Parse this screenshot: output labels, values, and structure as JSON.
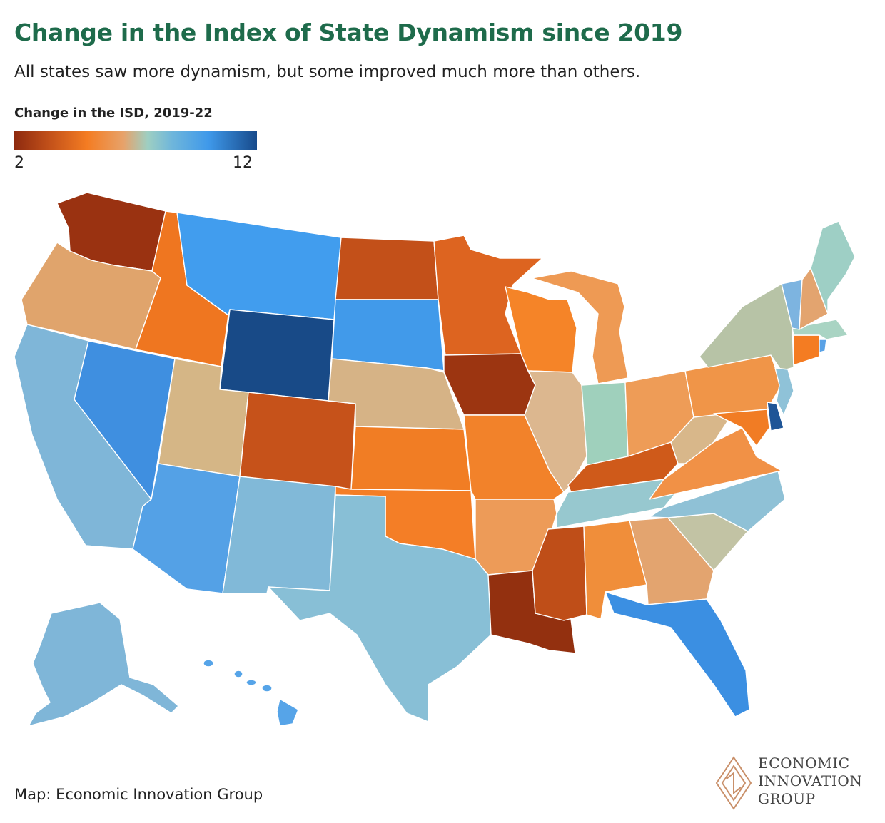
{
  "title": "Change in the Index of State Dynamism since 2019",
  "subtitle": "All states saw more dynamism, but some improved much more than others.",
  "legend": {
    "title": "Change in the ISD, 2019-22",
    "min_label": "2",
    "max_label": "12",
    "min": 2,
    "max": 12,
    "gradient_colors": [
      "#8e2a0f",
      "#c4521a",
      "#f47c22",
      "#e7a26a",
      "#9ecfc2",
      "#6fb6db",
      "#3f99ea",
      "#174a8b"
    ]
  },
  "credit": "Map: Economic Innovation Group",
  "logo": {
    "lines": [
      "ECONOMIC",
      "INNOVATION",
      "GROUP"
    ],
    "color": "#c9906a"
  },
  "states": [
    {
      "id": "WA",
      "color": "#9a3211"
    },
    {
      "id": "OR",
      "color": "#e0a46c"
    },
    {
      "id": "CA",
      "color": "#7fb6d8"
    },
    {
      "id": "NV",
      "color": "#3f8fe0"
    },
    {
      "id": "ID",
      "color": "#ef7620"
    },
    {
      "id": "MT",
      "color": "#419dee"
    },
    {
      "id": "WY",
      "color": "#184a87"
    },
    {
      "id": "UT",
      "color": "#d5b686"
    },
    {
      "id": "AZ",
      "color": "#54a1e6"
    },
    {
      "id": "CO",
      "color": "#c6521a"
    },
    {
      "id": "NM",
      "color": "#81b9d8"
    },
    {
      "id": "ND",
      "color": "#c35019"
    },
    {
      "id": "SD",
      "color": "#419aea"
    },
    {
      "id": "NE",
      "color": "#d6b386"
    },
    {
      "id": "KS",
      "color": "#f17d24"
    },
    {
      "id": "OK",
      "color": "#f47e26"
    },
    {
      "id": "TX",
      "color": "#88bfd6"
    },
    {
      "id": "MN",
      "color": "#dd6420"
    },
    {
      "id": "IA",
      "color": "#9c3511"
    },
    {
      "id": "MO",
      "color": "#f2822a"
    },
    {
      "id": "AR",
      "color": "#ed9b58"
    },
    {
      "id": "LA",
      "color": "#93300f"
    },
    {
      "id": "WI",
      "color": "#f58428"
    },
    {
      "id": "IL",
      "color": "#dcb78f"
    },
    {
      "id": "MS",
      "color": "#bf4e18"
    },
    {
      "id": "MI",
      "color": "#ee9a54"
    },
    {
      "id": "IN",
      "color": "#9fd0bc"
    },
    {
      "id": "KY",
      "color": "#cf5a1a"
    },
    {
      "id": "TN",
      "color": "#97c8cf"
    },
    {
      "id": "AL",
      "color": "#f08e3a"
    },
    {
      "id": "OH",
      "color": "#ee9c57"
    },
    {
      "id": "GA",
      "color": "#e3a46f"
    },
    {
      "id": "FL",
      "color": "#3b8fe2"
    },
    {
      "id": "WV",
      "color": "#d8b78a"
    },
    {
      "id": "VA",
      "color": "#f19146"
    },
    {
      "id": "NC",
      "color": "#8fc1d6"
    },
    {
      "id": "SC",
      "color": "#c2c3a4"
    },
    {
      "id": "PA",
      "color": "#f09548"
    },
    {
      "id": "NY",
      "color": "#b7c3a6"
    },
    {
      "id": "MD",
      "color": "#f17c24"
    },
    {
      "id": "DE",
      "color": "#1f5597"
    },
    {
      "id": "NJ",
      "color": "#8fc2d8"
    },
    {
      "id": "CT",
      "color": "#f47c22"
    },
    {
      "id": "RI",
      "color": "#5aa2e6"
    },
    {
      "id": "MA",
      "color": "#a9d4c3"
    },
    {
      "id": "VT",
      "color": "#7db4e0"
    },
    {
      "id": "NH",
      "color": "#e3a46f"
    },
    {
      "id": "ME",
      "color": "#9ecfc5"
    },
    {
      "id": "AK",
      "color": "#7fb6d8"
    },
    {
      "id": "HI",
      "color": "#56a4e8"
    }
  ]
}
